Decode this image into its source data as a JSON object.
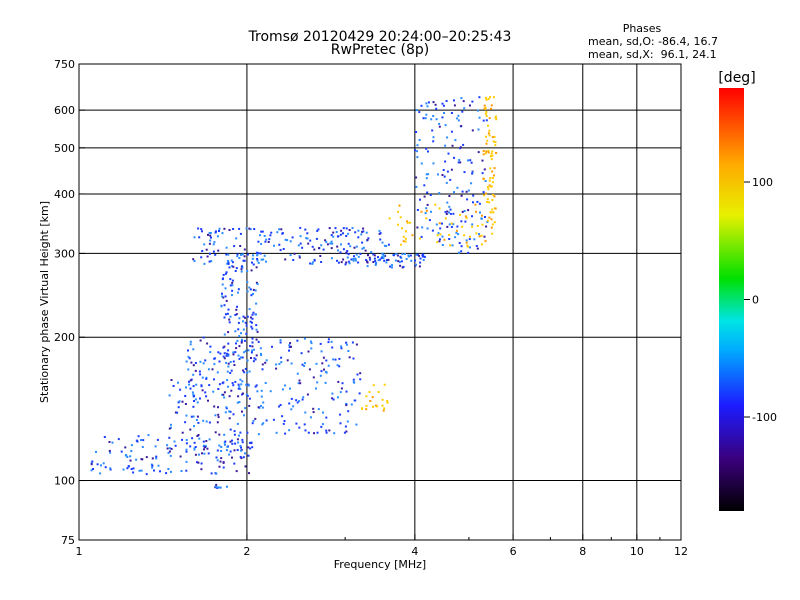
{
  "chart_data": {
    "type": "scatter",
    "title": "Tromsø 20120429 20:24:00–20:25:43",
    "subtitle": "RwPretec (8p)",
    "xlabel": "Frequency [MHz]",
    "ylabel": "Stationary phase Virtual Height [km]",
    "x_scale": "log",
    "y_scale": "log",
    "xlim": [
      1,
      12
    ],
    "ylim": [
      75,
      750
    ],
    "x_ticks": [
      1,
      2,
      4,
      6,
      8,
      10,
      12
    ],
    "y_ticks": [
      75,
      100,
      200,
      300,
      400,
      500,
      600,
      750
    ],
    "x_gridlines": [
      2,
      4,
      6,
      8,
      10
    ],
    "y_gridlines": [
      100,
      200,
      300,
      400,
      500,
      600
    ],
    "grid": true,
    "stats": {
      "heading": "Phases",
      "line_o": "mean, sd,O: -86.4, 16.7",
      "line_x": "mean, sd,X:  96.1, 24.1"
    },
    "colorbar": {
      "unit": "[deg]",
      "ticks": [
        100,
        0,
        -100
      ],
      "range": [
        -180,
        180
      ],
      "colors": [
        "#000000",
        "#3a007a",
        "#1c1cff",
        "#00aaff",
        "#00e5e5",
        "#00e000",
        "#e8f000",
        "#ffaa00",
        "#ff0000"
      ]
    },
    "phase_colors": {
      "o_mode_blue": "#1a3cff",
      "o_mode_lightblue": "#2a8cff",
      "o_mode_purple": "#3c1a9c",
      "x_mode_yellow": "#ffcc00",
      "x_mode_orange": "#ff9900"
    },
    "series": [
      {
        "mode": "O (blue, phase ≈ -90°)",
        "traces": [
          {
            "x_range": [
              1.05,
              2.05
            ],
            "y_range": [
              103,
              125
            ],
            "n": 140
          },
          {
            "x_range": [
              1.45,
              2.0
            ],
            "y_range": [
              115,
              165
            ],
            "n": 110
          },
          {
            "x_range": [
              1.55,
              2.1
            ],
            "y_range": [
              150,
              200
            ],
            "n": 90
          },
          {
            "x_range": [
              1.8,
              2.1
            ],
            "y_range": [
              180,
              295
            ],
            "n": 120
          },
          {
            "x_range": [
              2.0,
              3.2
            ],
            "y_range": [
              125,
              200
            ],
            "n": 170
          },
          {
            "x_range": [
              1.6,
              3.6
            ],
            "y_range": [
              285,
              340
            ],
            "n": 210
          },
          {
            "x_range": [
              3.0,
              4.2
            ],
            "y_range": [
              280,
              300
            ],
            "n": 70
          },
          {
            "x_range": [
              4.0,
              5.4
            ],
            "y_range": [
              300,
              640
            ],
            "n": 180
          },
          {
            "x_range": [
              1.75,
              1.85
            ],
            "y_range": [
              96,
              98
            ],
            "n": 8
          }
        ]
      },
      {
        "mode": "X (yellow/orange, phase ≈ +100°)",
        "traces": [
          {
            "x_range": [
              3.6,
              5.6
            ],
            "y_range": [
              310,
              380
            ],
            "n": 60
          },
          {
            "x_range": [
              5.3,
              5.6
            ],
            "y_range": [
              360,
              640
            ],
            "n": 70
          },
          {
            "x_range": [
              3.2,
              3.6
            ],
            "y_range": [
              140,
              160
            ],
            "n": 20
          }
        ]
      }
    ]
  }
}
